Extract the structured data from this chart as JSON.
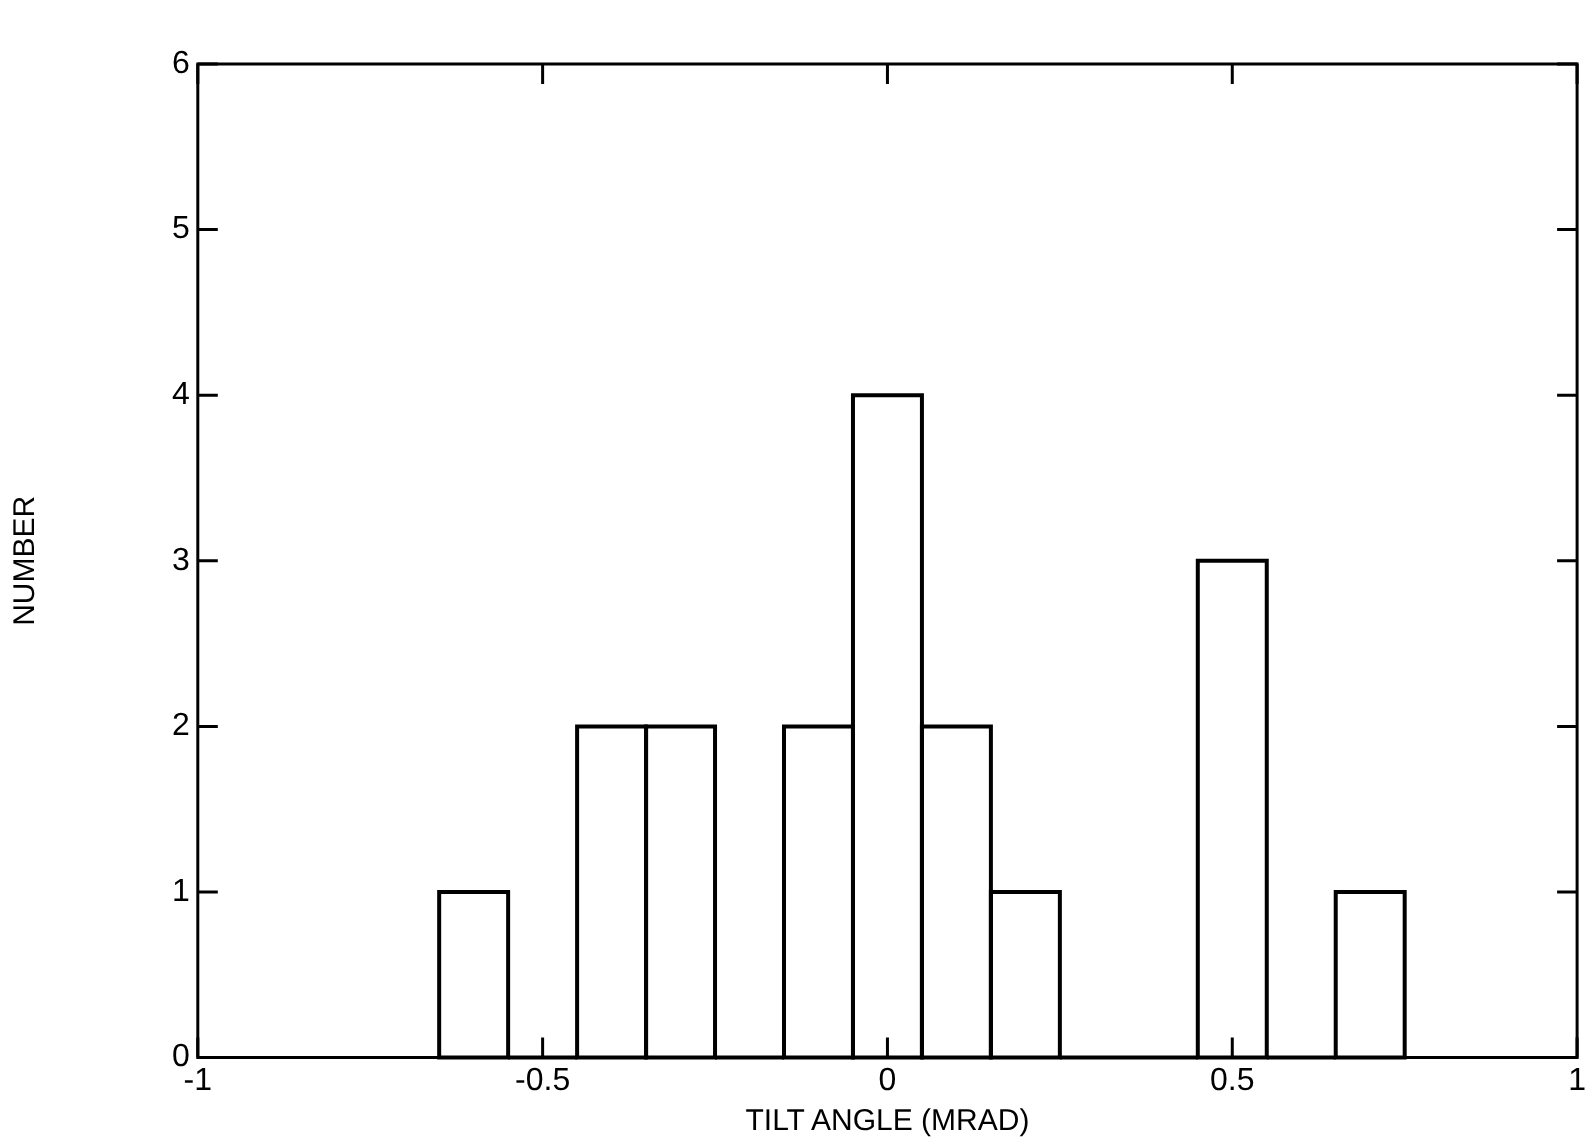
{
  "chart_data": {
    "type": "histogram",
    "xlabel": "TILT ANGLE (MRAD)",
    "ylabel": "NUMBER",
    "bins": [
      -0.65,
      -0.55,
      -0.45,
      -0.35,
      -0.25,
      -0.15,
      -0.05,
      0.05,
      0.15,
      0.25,
      0.45,
      0.55,
      0.65,
      0.75
    ],
    "values": [
      1,
      0,
      2,
      2,
      0,
      2,
      4,
      2,
      1,
      0,
      3,
      0,
      1
    ],
    "color": "#000000",
    "xlim": [
      -1,
      1
    ],
    "xticks": [
      -1,
      -0.5,
      0,
      0.5,
      1
    ],
    "ylim": [
      0,
      6
    ],
    "yticks": [
      0,
      1,
      2,
      3,
      4,
      5,
      6
    ],
    "grid": false,
    "legend": false
  }
}
